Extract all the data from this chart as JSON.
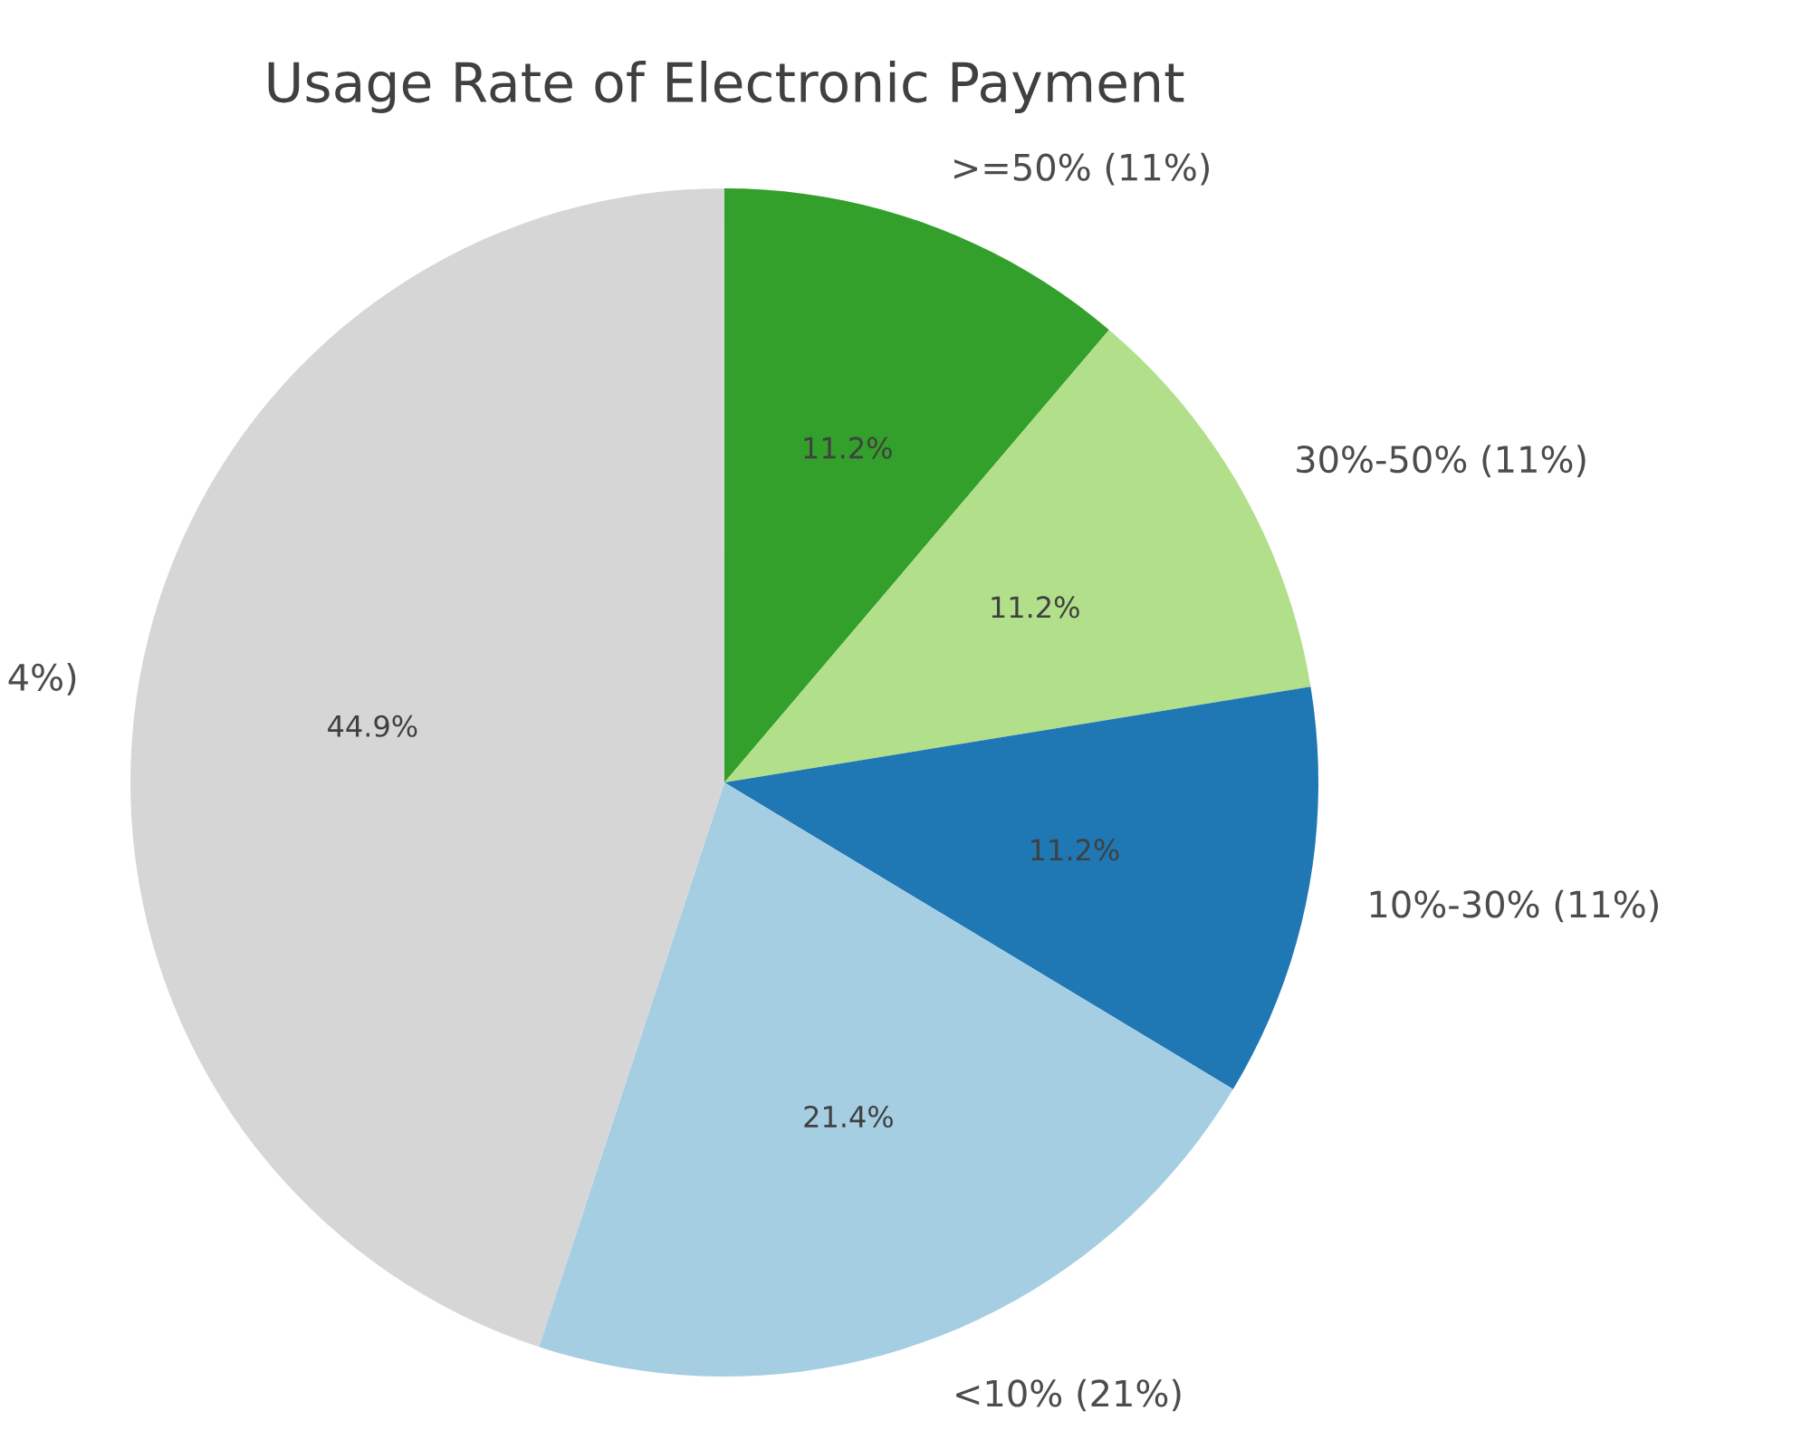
{
  "chart_data": {
    "type": "pie",
    "title": "Usage Rate of Electronic Payment",
    "categories": [
      ">=50% (11%)",
      "30%-50% (11%)",
      "10%-30% (11%)",
      "<10% (21%)",
      "4%)"
    ],
    "values": [
      11.2,
      11.2,
      11.2,
      21.4,
      44.9
    ],
    "value_labels": [
      "11.2%",
      "11.2%",
      "11.2%",
      "21.4%",
      "44.9%"
    ],
    "colors": [
      "#33a02c",
      "#b2df8a",
      "#1f78b4",
      "#a6cee3",
      "#d6d6d6"
    ]
  }
}
